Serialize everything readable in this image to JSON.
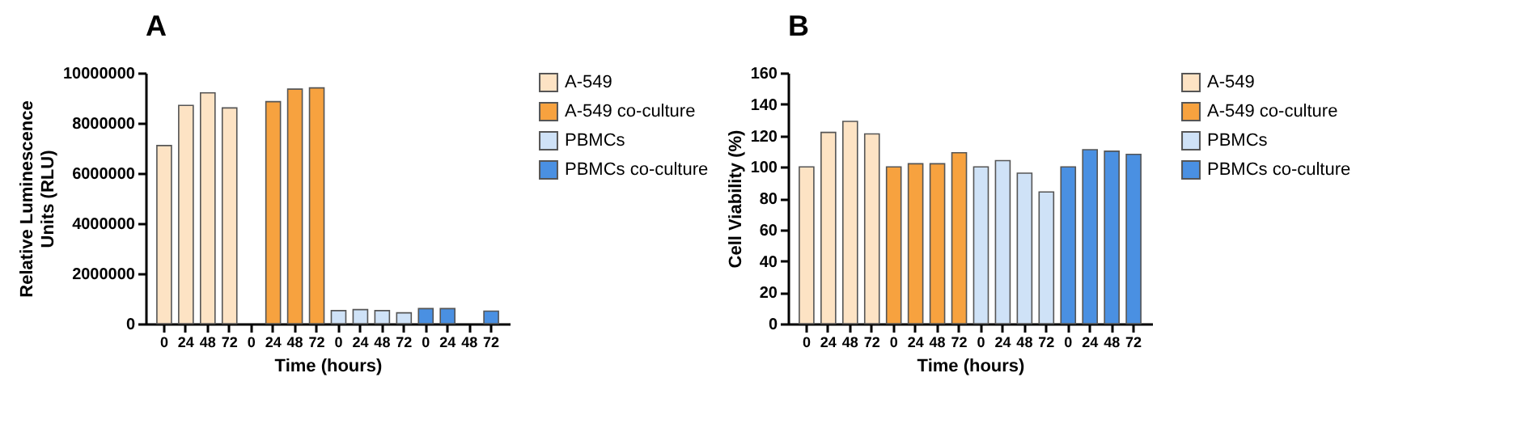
{
  "chart_data": [
    {
      "type": "bar",
      "title": "A",
      "xlabel": "Time (hours)",
      "ylabel": "Relative Luminescence Units (RLU)",
      "categories": [
        "0",
        "24",
        "48",
        "72",
        "0",
        "24",
        "48",
        "72",
        "0",
        "24",
        "48",
        "72",
        "0",
        "24",
        "48",
        "72"
      ],
      "series": [
        {
          "name": "A-549",
          "color": "#fde3c4",
          "values": [
            7100000,
            8700000,
            9200000,
            8600000,
            null,
            null,
            null,
            null,
            null,
            null,
            null,
            null,
            null,
            null,
            null,
            null
          ]
        },
        {
          "name": "A-549 co-culture",
          "color": "#f7a23f",
          "values": [
            null,
            null,
            null,
            null,
            null,
            8850000,
            9350000,
            9400000,
            null,
            null,
            null,
            null,
            null,
            null,
            null,
            null
          ]
        },
        {
          "name": "PBMCs",
          "color": "#cfe2f7",
          "values": [
            null,
            null,
            null,
            null,
            null,
            null,
            null,
            null,
            520000,
            560000,
            520000,
            430000,
            null,
            null,
            null,
            null
          ]
        },
        {
          "name": "PBMCs co-culture",
          "color": "#4a90e2",
          "values": [
            null,
            null,
            null,
            null,
            null,
            null,
            null,
            null,
            null,
            null,
            null,
            null,
            600000,
            600000,
            null,
            500000
          ]
        }
      ],
      "ylim": [
        0,
        10000000
      ],
      "yticks": [
        0,
        2000000,
        4000000,
        6000000,
        8000000,
        10000000
      ],
      "grid": false,
      "legend": "right"
    },
    {
      "type": "bar",
      "title": "B",
      "xlabel": "Time (hours)",
      "ylabel": "Cell Viability (%)",
      "categories": [
        "0",
        "24",
        "48",
        "72",
        "0",
        "24",
        "48",
        "72",
        "0",
        "24",
        "48",
        "72",
        "0",
        "24",
        "48",
        "72"
      ],
      "series": [
        {
          "name": "A-549",
          "color": "#fde3c4",
          "values": [
            100,
            122,
            129,
            121,
            null,
            null,
            null,
            null,
            null,
            null,
            null,
            null,
            null,
            null,
            null,
            null
          ]
        },
        {
          "name": "A-549 co-culture",
          "color": "#f7a23f",
          "values": [
            null,
            null,
            null,
            null,
            100,
            102,
            102,
            109,
            null,
            null,
            null,
            null,
            null,
            null,
            null,
            null
          ]
        },
        {
          "name": "PBMCs",
          "color": "#cfe2f7",
          "values": [
            null,
            null,
            null,
            null,
            null,
            null,
            null,
            null,
            100,
            104,
            96,
            84,
            null,
            null,
            null,
            null
          ]
        },
        {
          "name": "PBMCs co-culture",
          "color": "#4a90e2",
          "values": [
            null,
            null,
            null,
            null,
            null,
            null,
            null,
            null,
            null,
            null,
            null,
            null,
            100,
            111,
            110,
            108
          ]
        }
      ],
      "ylim": [
        0,
        160
      ],
      "yticks": [
        0,
        20,
        40,
        60,
        80,
        100,
        120,
        140,
        160
      ],
      "grid": false,
      "legend": "right"
    }
  ]
}
